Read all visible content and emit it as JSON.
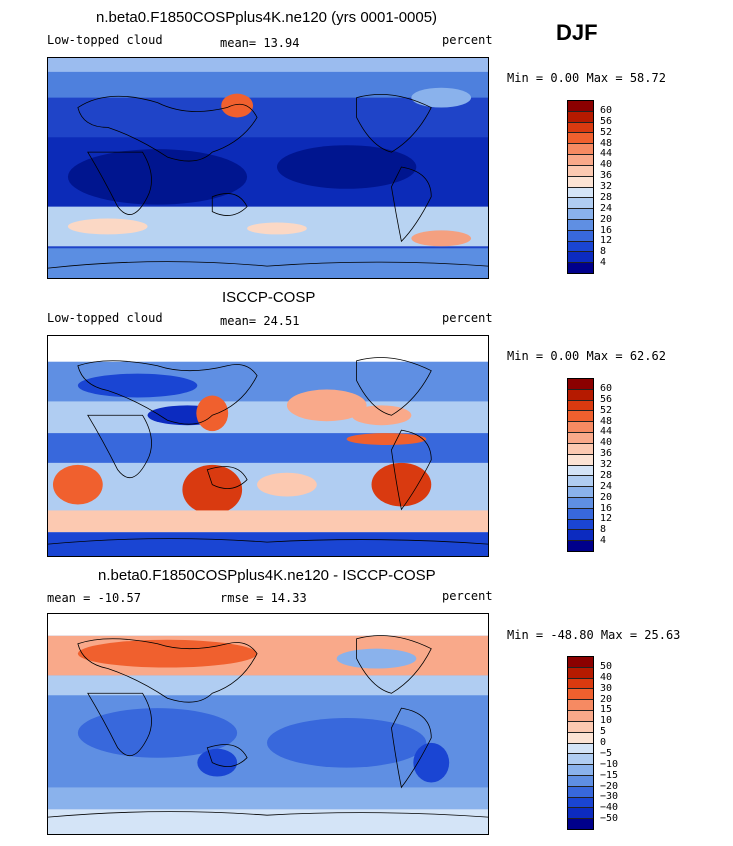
{
  "season": "DJF",
  "panels": [
    {
      "title": "n.beta0.F1850COSPplus4K.ne120 (yrs 0001-0005)",
      "left_label": "Low-topped cloud",
      "mean_text": "mean=  13.94",
      "units": "percent",
      "minmax_text": "Min =    0.00 Max =   58.72"
    },
    {
      "title": "ISCCP-COSP",
      "left_label": "Low-topped cloud",
      "mean_text": "mean=  24.51",
      "units": "percent",
      "minmax_text": "Min =    0.00 Max =   62.62"
    },
    {
      "title": "n.beta0.F1850COSPplus4K.ne120 - ISCCP-COSP",
      "left_label": "mean = -10.57",
      "mean_text": "rmse =  14.33",
      "units": "percent",
      "minmax_text": "Min = -48.80 Max =   25.63"
    }
  ],
  "colorbars": {
    "abs": {
      "labels": [
        "60",
        "56",
        "52",
        "48",
        "44",
        "40",
        "36",
        "32",
        "28",
        "24",
        "20",
        "16",
        "12",
        "8",
        "4"
      ],
      "colors": [
        "#8b0000",
        "#b51a00",
        "#d93a10",
        "#f0602e",
        "#f68a62",
        "#f9a98a",
        "#fcc9b1",
        "#fce3d4",
        "#d4e4f7",
        "#b0cdf2",
        "#8ab2ec",
        "#5f8fe3",
        "#3868dc",
        "#1a45d3",
        "#0c2bc0",
        "#00008b"
      ]
    },
    "diff": {
      "labels": [
        "50",
        "40",
        "30",
        "20",
        "15",
        "10",
        "5",
        "0",
        "−5",
        "−10",
        "−15",
        "−20",
        "−30",
        "−40",
        "−50"
      ],
      "colors": [
        "#8b0000",
        "#b51a00",
        "#d93a10",
        "#f0602e",
        "#f68a62",
        "#f9a98a",
        "#fcc9b1",
        "#fce3d4",
        "#d4e4f7",
        "#b0cdf2",
        "#8ab2ec",
        "#5f8fe3",
        "#3868dc",
        "#1a45d3",
        "#0c2bc0",
        "#00008b"
      ]
    }
  }
}
